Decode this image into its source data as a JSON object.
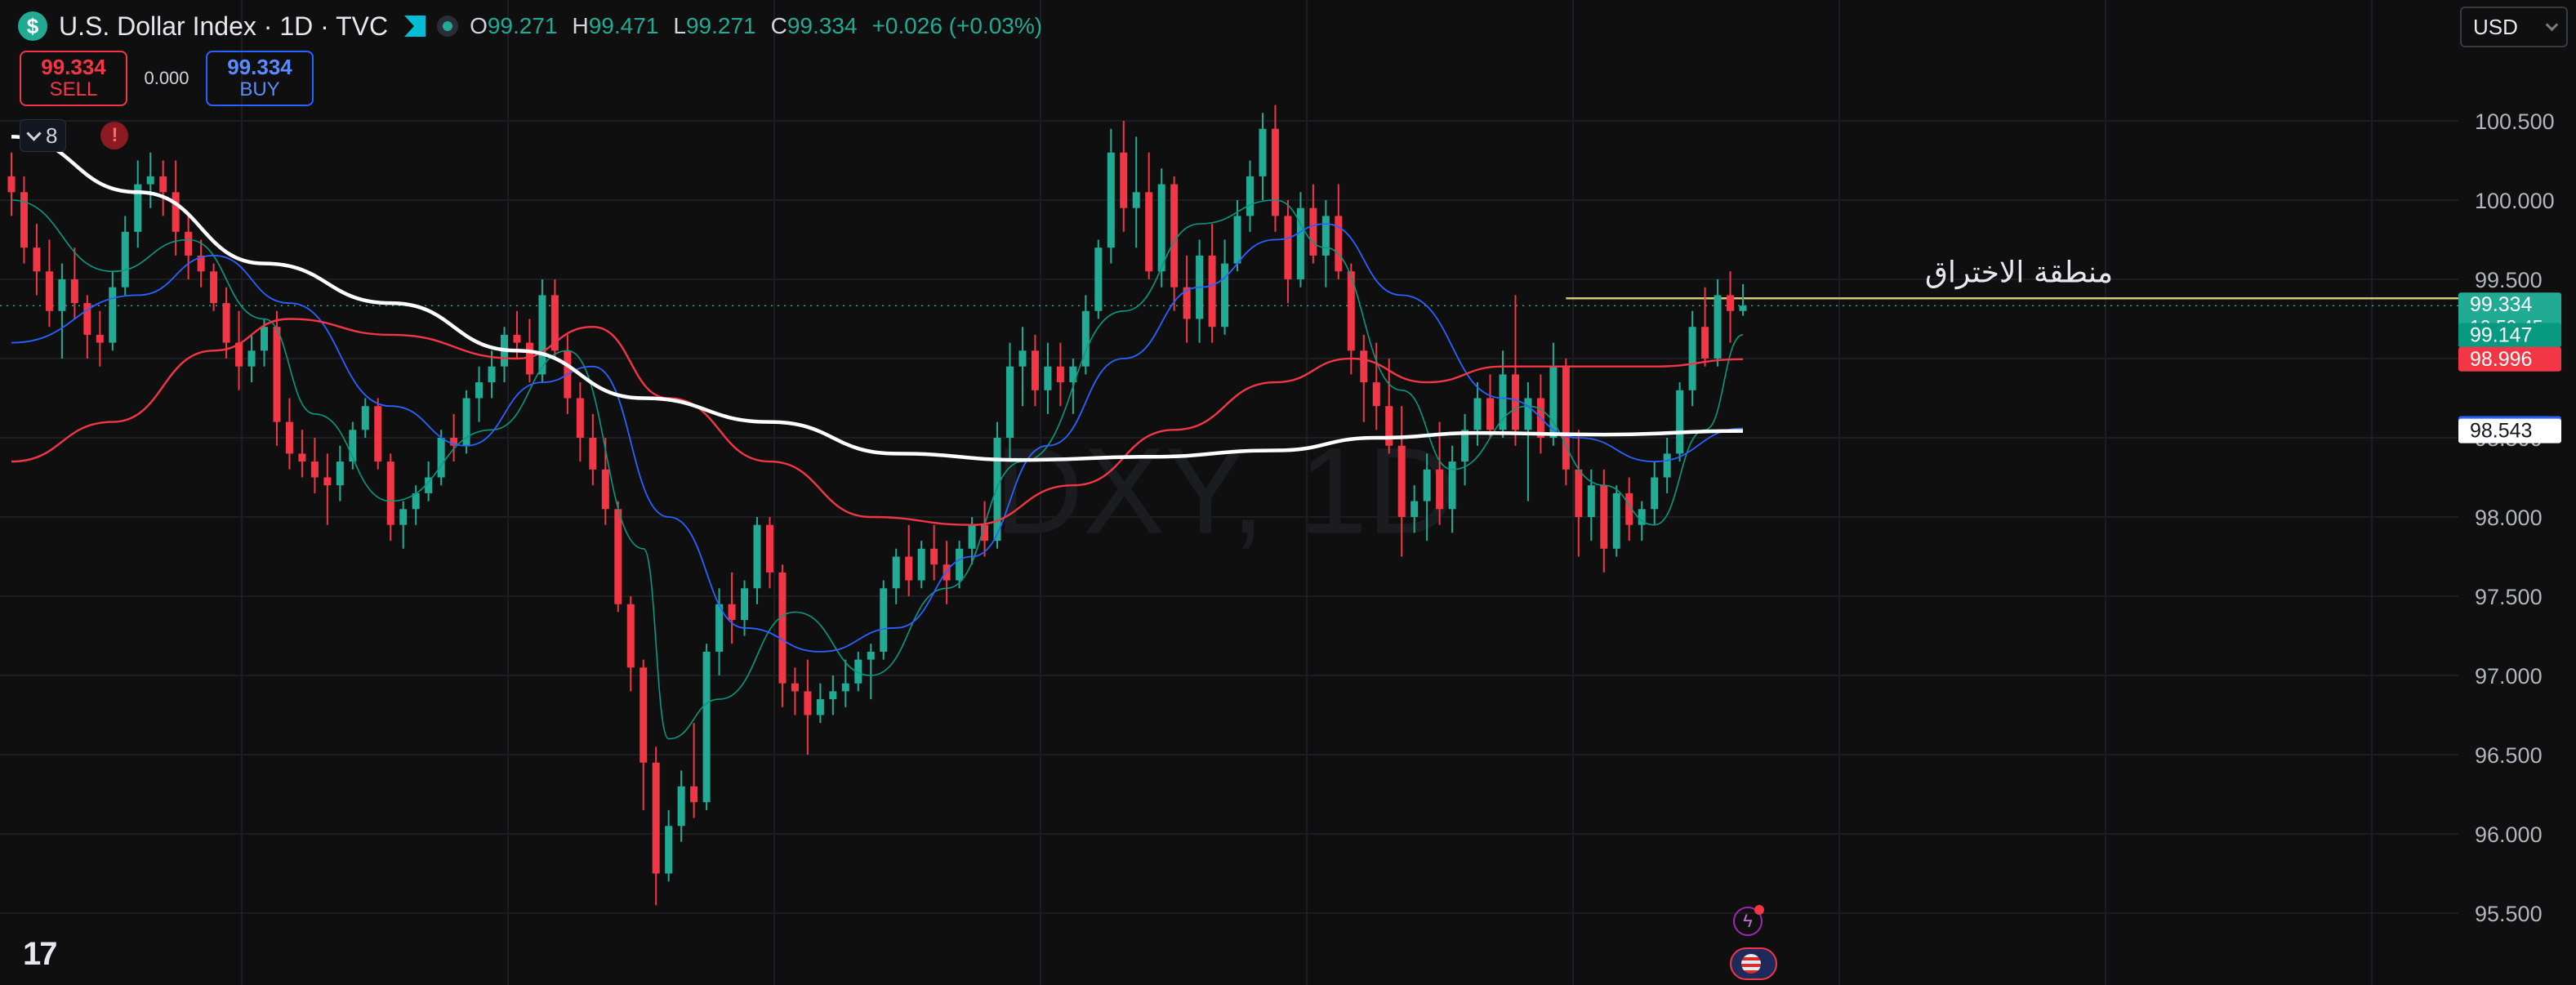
{
  "header": {
    "symbol_title": "U.S. Dollar Index · 1D · TVC",
    "logo_glyph": "$",
    "ohlc": [
      {
        "key": "O",
        "value": "99.271"
      },
      {
        "key": "H",
        "value": "99.471"
      },
      {
        "key": "L",
        "value": "99.271"
      },
      {
        "key": "C",
        "value": "99.334"
      },
      {
        "key": "",
        "value": "+0.026 (+0.03%)"
      }
    ]
  },
  "trade": {
    "sell_price": "99.334",
    "sell_label": "SELL",
    "spread": "0.000",
    "buy_price": "99.334",
    "buy_label": "BUY"
  },
  "indicators": {
    "toggle_count": "8",
    "alert_glyph": "!"
  },
  "currency": {
    "label": "USD"
  },
  "watermark": "DXY, 1D",
  "annotation": {
    "text": "منطقة الاختراق",
    "price": 99.38
  },
  "colors": {
    "up": "#22ab94",
    "down": "#f23645",
    "ema_fast": "#089981",
    "ma_blue": "#2962ff",
    "ma_red": "#f23645",
    "ma_white": "#ffffff",
    "level_line": "#d4c97a"
  },
  "chart_data": {
    "type": "candlestick",
    "y_range": [
      95.38,
      100.85
    ],
    "y_ticks": [
      "100.500",
      "100.000",
      "99.500",
      "99.000",
      "98.500",
      "98.000",
      "97.500",
      "97.000",
      "96.500",
      "96.000",
      "95.500"
    ],
    "ohlc": [
      [
        100.15,
        100.3,
        99.9,
        100.05
      ],
      [
        100.05,
        100.15,
        99.6,
        99.7
      ],
      [
        99.7,
        99.85,
        99.4,
        99.55
      ],
      [
        99.55,
        99.75,
        99.2,
        99.3
      ],
      [
        99.3,
        99.6,
        99.0,
        99.5
      ],
      [
        99.5,
        99.7,
        99.25,
        99.35
      ],
      [
        99.35,
        99.4,
        99.0,
        99.15
      ],
      [
        99.15,
        99.3,
        98.95,
        99.1
      ],
      [
        99.1,
        99.55,
        99.05,
        99.45
      ],
      [
        99.45,
        99.9,
        99.4,
        99.8
      ],
      [
        99.8,
        100.25,
        99.7,
        100.1
      ],
      [
        100.1,
        100.3,
        99.95,
        100.15
      ],
      [
        100.15,
        100.25,
        99.9,
        100.05
      ],
      [
        100.05,
        100.25,
        99.65,
        99.8
      ],
      [
        99.8,
        99.9,
        99.5,
        99.65
      ],
      [
        99.65,
        99.75,
        99.45,
        99.55
      ],
      [
        99.55,
        99.6,
        99.3,
        99.35
      ],
      [
        99.35,
        99.45,
        99.0,
        99.1
      ],
      [
        99.1,
        99.3,
        98.8,
        98.95
      ],
      [
        98.95,
        99.15,
        98.85,
        99.05
      ],
      [
        99.05,
        99.25,
        98.95,
        99.2
      ],
      [
        99.2,
        99.3,
        98.45,
        98.6
      ],
      [
        98.6,
        98.75,
        98.3,
        98.4
      ],
      [
        98.4,
        98.55,
        98.25,
        98.35
      ],
      [
        98.35,
        98.5,
        98.15,
        98.25
      ],
      [
        98.25,
        98.4,
        97.95,
        98.2
      ],
      [
        98.2,
        98.45,
        98.1,
        98.35
      ],
      [
        98.35,
        98.6,
        98.3,
        98.55
      ],
      [
        98.55,
        98.75,
        98.5,
        98.7
      ],
      [
        98.7,
        98.75,
        98.3,
        98.35
      ],
      [
        98.35,
        98.4,
        97.85,
        97.95
      ],
      [
        97.95,
        98.1,
        97.8,
        98.05
      ],
      [
        98.05,
        98.2,
        97.95,
        98.15
      ],
      [
        98.15,
        98.35,
        98.1,
        98.25
      ],
      [
        98.25,
        98.55,
        98.2,
        98.5
      ],
      [
        98.5,
        98.65,
        98.35,
        98.45
      ],
      [
        98.45,
        98.8,
        98.4,
        98.75
      ],
      [
        98.75,
        98.95,
        98.6,
        98.85
      ],
      [
        98.85,
        99.05,
        98.75,
        98.95
      ],
      [
        98.95,
        99.2,
        98.85,
        99.15
      ],
      [
        99.15,
        99.3,
        99.0,
        99.1
      ],
      [
        99.1,
        99.25,
        98.85,
        98.9
      ],
      [
        98.9,
        99.5,
        98.85,
        99.4
      ],
      [
        99.4,
        99.5,
        99.0,
        99.05
      ],
      [
        99.05,
        99.15,
        98.65,
        98.75
      ],
      [
        98.75,
        98.85,
        98.35,
        98.5
      ],
      [
        98.5,
        98.65,
        98.2,
        98.3
      ],
      [
        98.3,
        98.5,
        97.95,
        98.05
      ],
      [
        98.05,
        98.1,
        97.4,
        97.45
      ],
      [
        97.45,
        97.5,
        96.9,
        97.05
      ],
      [
        97.05,
        97.1,
        96.15,
        96.45
      ],
      [
        96.45,
        96.55,
        95.55,
        95.75
      ],
      [
        95.75,
        96.15,
        95.7,
        96.05
      ],
      [
        96.05,
        96.4,
        95.95,
        96.3
      ],
      [
        96.3,
        96.7,
        96.1,
        96.2
      ],
      [
        96.2,
        97.2,
        96.15,
        97.15
      ],
      [
        97.15,
        97.55,
        97.0,
        97.45
      ],
      [
        97.45,
        97.65,
        97.2,
        97.35
      ],
      [
        97.35,
        97.6,
        97.25,
        97.55
      ],
      [
        97.55,
        98.0,
        97.45,
        97.95
      ],
      [
        97.95,
        98.0,
        97.55,
        97.65
      ],
      [
        97.65,
        97.7,
        96.8,
        96.95
      ],
      [
        96.95,
        97.05,
        96.75,
        96.9
      ],
      [
        96.9,
        97.1,
        96.5,
        96.75
      ],
      [
        96.75,
        96.95,
        96.7,
        96.85
      ],
      [
        96.85,
        97.0,
        96.75,
        96.9
      ],
      [
        96.9,
        97.1,
        96.8,
        96.95
      ],
      [
        96.95,
        97.15,
        96.9,
        97.1
      ],
      [
        97.1,
        97.2,
        96.85,
        97.15
      ],
      [
        97.15,
        97.6,
        97.1,
        97.55
      ],
      [
        97.55,
        97.8,
        97.45,
        97.75
      ],
      [
        97.75,
        97.95,
        97.5,
        97.6
      ],
      [
        97.6,
        97.85,
        97.55,
        97.8
      ],
      [
        97.8,
        97.95,
        97.6,
        97.7
      ],
      [
        97.7,
        97.85,
        97.45,
        97.6
      ],
      [
        97.6,
        97.85,
        97.55,
        97.8
      ],
      [
        97.8,
        98.0,
        97.7,
        97.95
      ],
      [
        97.95,
        98.1,
        97.75,
        97.85
      ],
      [
        97.85,
        98.6,
        97.8,
        98.5
      ],
      [
        98.5,
        99.1,
        98.35,
        98.95
      ],
      [
        98.95,
        99.2,
        98.7,
        99.05
      ],
      [
        99.05,
        99.15,
        98.7,
        98.8
      ],
      [
        98.8,
        99.1,
        98.65,
        98.95
      ],
      [
        98.95,
        99.1,
        98.7,
        98.85
      ],
      [
        98.85,
        99.0,
        98.65,
        98.95
      ],
      [
        98.95,
        99.4,
        98.9,
        99.3
      ],
      [
        99.3,
        99.75,
        99.25,
        99.7
      ],
      [
        99.7,
        100.45,
        99.6,
        100.3
      ],
      [
        100.3,
        100.5,
        99.8,
        99.95
      ],
      [
        99.95,
        100.4,
        99.7,
        100.05
      ],
      [
        100.05,
        100.3,
        99.5,
        99.55
      ],
      [
        99.55,
        100.2,
        99.45,
        100.1
      ],
      [
        100.1,
        100.15,
        99.3,
        99.45
      ],
      [
        99.45,
        99.65,
        99.1,
        99.25
      ],
      [
        99.25,
        99.75,
        99.1,
        99.65
      ],
      [
        99.65,
        99.85,
        99.1,
        99.2
      ],
      [
        99.2,
        99.75,
        99.15,
        99.6
      ],
      [
        99.6,
        100.0,
        99.55,
        99.9
      ],
      [
        99.9,
        100.25,
        99.8,
        100.15
      ],
      [
        100.15,
        100.55,
        100.0,
        100.45
      ],
      [
        100.45,
        100.6,
        99.8,
        99.9
      ],
      [
        99.9,
        100.0,
        99.35,
        99.5
      ],
      [
        99.5,
        100.05,
        99.45,
        99.95
      ],
      [
        99.95,
        100.1,
        99.6,
        99.65
      ],
      [
        99.65,
        100.0,
        99.45,
        99.9
      ],
      [
        99.9,
        100.1,
        99.5,
        99.55
      ],
      [
        99.55,
        99.6,
        98.9,
        99.05
      ],
      [
        99.05,
        99.15,
        98.6,
        98.85
      ],
      [
        98.85,
        99.1,
        98.55,
        98.7
      ],
      [
        98.7,
        99.0,
        98.4,
        98.45
      ],
      [
        98.45,
        98.7,
        97.75,
        98.0
      ],
      [
        98.0,
        98.2,
        97.9,
        98.1
      ],
      [
        98.1,
        98.4,
        97.85,
        98.3
      ],
      [
        98.3,
        98.6,
        97.95,
        98.05
      ],
      [
        98.05,
        98.45,
        97.9,
        98.35
      ],
      [
        98.35,
        98.65,
        98.2,
        98.55
      ],
      [
        98.55,
        98.85,
        98.45,
        98.75
      ],
      [
        98.75,
        98.9,
        98.5,
        98.55
      ],
      [
        98.55,
        99.05,
        98.5,
        98.9
      ],
      [
        98.9,
        99.4,
        98.45,
        98.55
      ],
      [
        98.55,
        98.85,
        98.1,
        98.75
      ],
      [
        98.75,
        98.9,
        98.4,
        98.5
      ],
      [
        98.5,
        99.1,
        98.45,
        98.95
      ],
      [
        98.95,
        99.0,
        98.2,
        98.3
      ],
      [
        98.3,
        98.55,
        97.75,
        98.0
      ],
      [
        98.0,
        98.3,
        97.85,
        98.2
      ],
      [
        98.2,
        98.3,
        97.65,
        97.8
      ],
      [
        97.8,
        98.2,
        97.75,
        98.15
      ],
      [
        98.15,
        98.25,
        97.85,
        97.95
      ],
      [
        97.95,
        98.1,
        97.85,
        98.05
      ],
      [
        98.05,
        98.35,
        97.95,
        98.25
      ],
      [
        98.25,
        98.5,
        98.15,
        98.4
      ],
      [
        98.4,
        98.85,
        98.35,
        98.8
      ],
      [
        98.8,
        99.3,
        98.7,
        99.2
      ],
      [
        99.2,
        99.45,
        98.95,
        99.0
      ],
      [
        99.0,
        99.5,
        98.95,
        99.4
      ],
      [
        99.4,
        99.55,
        99.1,
        99.3
      ],
      [
        99.3,
        99.47,
        99.27,
        99.334
      ]
    ],
    "series": [
      {
        "color": "#089981",
        "width": 1.6,
        "values": [
          [
            0,
            100.0
          ],
          [
            8,
            99.55
          ],
          [
            14,
            99.75
          ],
          [
            20,
            99.25
          ],
          [
            24,
            98.65
          ],
          [
            30,
            98.1
          ],
          [
            38,
            98.55
          ],
          [
            44,
            99.05
          ],
          [
            50,
            97.8
          ],
          [
            52,
            96.6
          ],
          [
            56,
            96.85
          ],
          [
            62,
            97.4
          ],
          [
            68,
            97.0
          ],
          [
            74,
            97.55
          ],
          [
            80,
            98.35
          ],
          [
            88,
            99.3
          ],
          [
            94,
            99.85
          ],
          [
            100,
            100.0
          ],
          [
            104,
            99.7
          ],
          [
            110,
            98.8
          ],
          [
            114,
            98.3
          ],
          [
            120,
            98.7
          ],
          [
            126,
            98.2
          ],
          [
            130,
            97.95
          ],
          [
            134,
            98.55
          ],
          [
            137,
            99.15
          ]
        ]
      },
      {
        "color": "#2962ff",
        "width": 1.8,
        "values": [
          [
            0,
            99.1
          ],
          [
            10,
            99.4
          ],
          [
            16,
            99.65
          ],
          [
            22,
            99.35
          ],
          [
            30,
            98.7
          ],
          [
            36,
            98.45
          ],
          [
            42,
            98.85
          ],
          [
            46,
            98.95
          ],
          [
            52,
            98.0
          ],
          [
            58,
            97.3
          ],
          [
            64,
            97.15
          ],
          [
            70,
            97.3
          ],
          [
            76,
            97.75
          ],
          [
            82,
            98.45
          ],
          [
            88,
            99.0
          ],
          [
            94,
            99.45
          ],
          [
            100,
            99.75
          ],
          [
            104,
            99.85
          ],
          [
            110,
            99.4
          ],
          [
            118,
            98.75
          ],
          [
            124,
            98.5
          ],
          [
            130,
            98.35
          ],
          [
            137,
            98.559
          ]
        ]
      },
      {
        "color": "#f23645",
        "width": 2.4,
        "values": [
          [
            0,
            98.35
          ],
          [
            8,
            98.6
          ],
          [
            16,
            99.05
          ],
          [
            22,
            99.25
          ],
          [
            30,
            99.15
          ],
          [
            40,
            99.0
          ],
          [
            46,
            99.2
          ],
          [
            52,
            98.75
          ],
          [
            60,
            98.35
          ],
          [
            68,
            98.0
          ],
          [
            76,
            97.95
          ],
          [
            84,
            98.2
          ],
          [
            92,
            98.55
          ],
          [
            100,
            98.85
          ],
          [
            106,
            99.0
          ],
          [
            112,
            98.85
          ],
          [
            118,
            98.95
          ],
          [
            124,
            98.95
          ],
          [
            130,
            98.95
          ],
          [
            137,
            98.996
          ]
        ]
      },
      {
        "color": "#ffffff",
        "width": 4.5,
        "values": [
          [
            0,
            100.4
          ],
          [
            10,
            100.05
          ],
          [
            20,
            99.6
          ],
          [
            30,
            99.35
          ],
          [
            40,
            99.05
          ],
          [
            50,
            98.75
          ],
          [
            60,
            98.6
          ],
          [
            70,
            98.4
          ],
          [
            80,
            98.36
          ],
          [
            90,
            98.38
          ],
          [
            100,
            98.42
          ],
          [
            108,
            98.5
          ],
          [
            116,
            98.53
          ],
          [
            126,
            98.52
          ],
          [
            137,
            98.543
          ]
        ]
      }
    ],
    "price_labels": [
      {
        "text": "99.334",
        "sub": "10:59:45",
        "price": 99.334,
        "bg": "#22ab94",
        "fg": "#ffffff"
      },
      {
        "text": "99.147",
        "price": 99.147,
        "bg": "#089981",
        "fg": "#ffffff"
      },
      {
        "text": "98.996",
        "price": 98.996,
        "bg": "#f23645",
        "fg": "#ffffff"
      },
      {
        "text": "98.559",
        "price": 98.559,
        "bg": "#2962ff",
        "fg": "#ffffff"
      },
      {
        "text": "98.543",
        "price": 98.543,
        "bg": "#ffffff",
        "fg": "#131722"
      }
    ]
  }
}
